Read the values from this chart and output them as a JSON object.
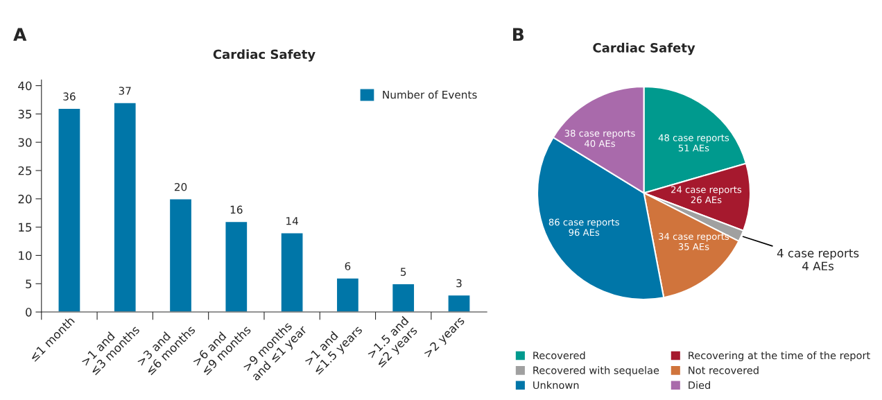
{
  "chart_data": [
    {
      "type": "bar",
      "title": "Cardiac Safety",
      "annotations": [
        "A"
      ],
      "categories": [
        "≤1 month",
        ">1 and\n≤3 months",
        ">3 and\n≤6 months",
        ">6 and\n≤9 months",
        ">9 months\nand ≤1 year",
        ">1 and\n≤1.5 years",
        ">1.5 and\n≤2 years",
        ">2 years"
      ],
      "series": [
        {
          "name": "Number of Events",
          "color": "#0076a8",
          "values": [
            36,
            37,
            20,
            16,
            14,
            6,
            5,
            3
          ]
        }
      ],
      "ylim": [
        0,
        41
      ],
      "yticks": [
        0,
        5,
        10,
        15,
        20,
        25,
        30,
        35,
        40
      ],
      "data_labels": true,
      "legend": "top right",
      "grid": false
    },
    {
      "type": "pie",
      "title": "Cardiac Safety",
      "annotations": [
        "B"
      ],
      "categories": [
        "Recovered",
        "Recovering at the time of the report",
        "Recovered with sequelae",
        "Not recovered",
        "Unknown",
        "Died"
      ],
      "values": [
        48,
        24,
        4,
        34,
        86,
        38
      ],
      "value_labels": [
        "48 case reports\n51 AEs",
        "24 case reports\n26 AEs",
        "4 case reports\n4 AEs",
        "34 case reports\n35 AEs",
        "86 case reports\n96 AEs",
        "38 case reports\n40 AEs"
      ],
      "colors": [
        "#009a8e",
        "#a6192e",
        "#a0a0a0",
        "#d0743c",
        "#0076a8",
        "#a96aab"
      ],
      "legend": "bottom"
    }
  ]
}
